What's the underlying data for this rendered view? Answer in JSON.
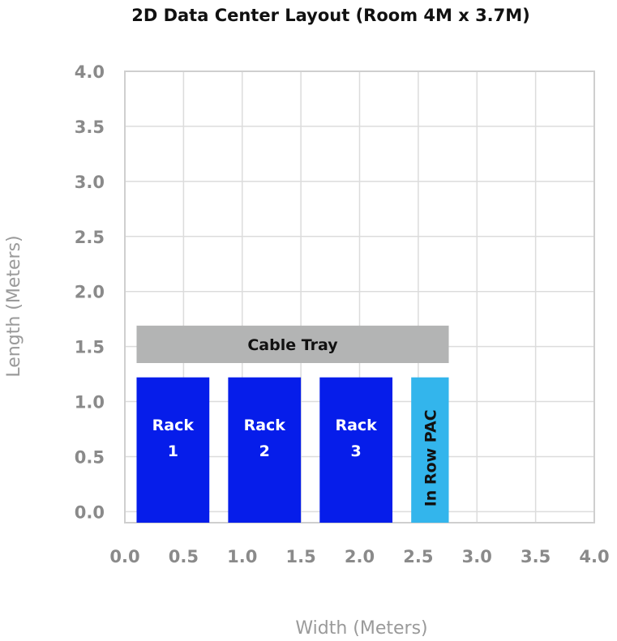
{
  "chart_data": {
    "type": "layout",
    "title": "2D Data Center Layout (Room 4M x 3.7M)",
    "xlabel": "Width (Meters)",
    "ylabel": "Length (Meters)",
    "xlim": [
      0,
      4.0
    ],
    "ylim": [
      -0.1,
      4.0
    ],
    "xticks": [
      "0.0",
      "0.5",
      "1.0",
      "1.5",
      "2.0",
      "2.5",
      "3.0",
      "3.5",
      "4.0"
    ],
    "yticks": [
      "0.0",
      "0.5",
      "1.0",
      "1.5",
      "2.0",
      "2.5",
      "3.0",
      "3.5",
      "4.0"
    ],
    "grid": true,
    "items": [
      {
        "name": "cable-tray",
        "lines": [
          "Cable Tray"
        ],
        "x0": 0.1,
        "x1": 2.76,
        "y0": 1.35,
        "y1": 1.69,
        "color": "#b3b4b4",
        "text_color": "#111111",
        "rotate": false
      },
      {
        "name": "rack-1",
        "lines": [
          "Rack",
          "1"
        ],
        "x0": 0.1,
        "x1": 0.72,
        "y0": -0.1,
        "y1": 1.22,
        "color": "#061dea",
        "text_color": "#ffffff",
        "rotate": false
      },
      {
        "name": "rack-2",
        "lines": [
          "Rack",
          "2"
        ],
        "x0": 0.88,
        "x1": 1.5,
        "y0": -0.1,
        "y1": 1.22,
        "color": "#061dea",
        "text_color": "#ffffff",
        "rotate": false
      },
      {
        "name": "rack-3",
        "lines": [
          "Rack",
          "3"
        ],
        "x0": 1.66,
        "x1": 2.28,
        "y0": -0.1,
        "y1": 1.22,
        "color": "#061dea",
        "text_color": "#ffffff",
        "rotate": false
      },
      {
        "name": "in-row-pac",
        "lines": [
          "In Row PAC"
        ],
        "x0": 2.44,
        "x1": 2.76,
        "y0": -0.1,
        "y1": 1.22,
        "color": "#33b5ec",
        "text_color": "#111111",
        "rotate": true
      }
    ]
  }
}
